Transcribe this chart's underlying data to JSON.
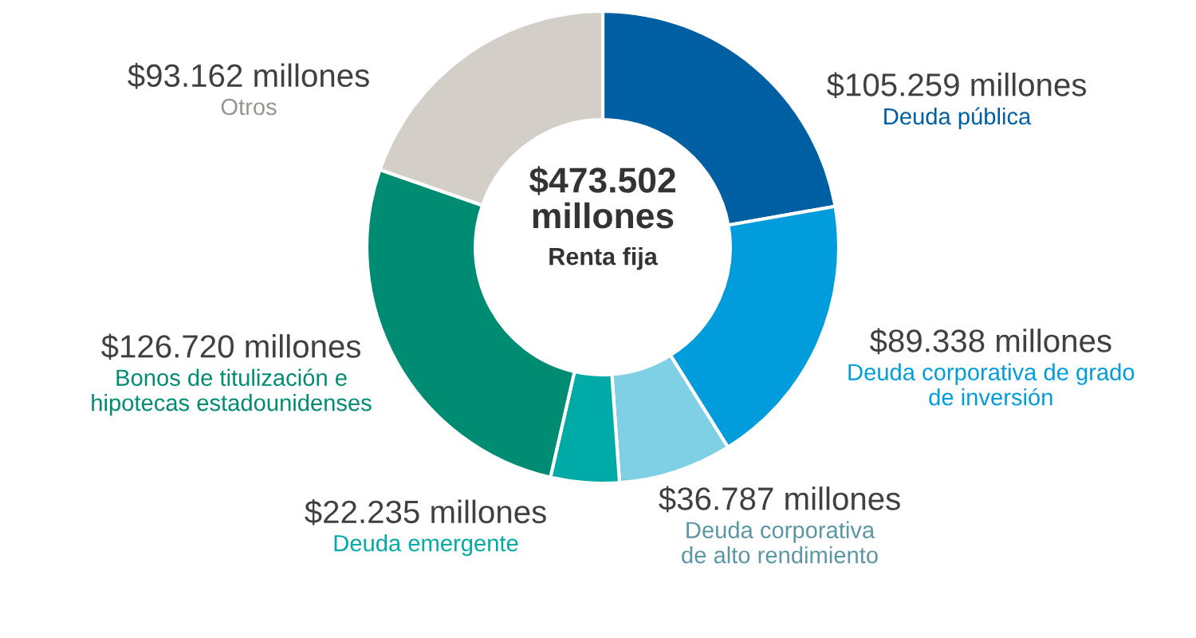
{
  "chart_data": {
    "type": "donut",
    "categories": [
      "Deuda pública",
      "Deuda corporativa de grado\nde inversión",
      "Deuda corporativa\nde alto rendimiento",
      "Deuda emergente",
      "Bonos de titulización e\nhipotecas estadounidenses",
      "Otros"
    ],
    "values": [
      105.259,
      89.338,
      36.787,
      22.235,
      126.72,
      93.162
    ],
    "value_labels": [
      "$105.259 millones",
      "$89.338 millones",
      "$36.787 millones",
      "$22.235 millones",
      "$126.720 millones",
      "$93.162 millones"
    ],
    "colors": [
      "#005ea2",
      "#009cdc",
      "#7fd0e4",
      "#00aaa6",
      "#008c72",
      "#d3cfc8"
    ],
    "annotations": [
      "$473.502\nmillones",
      "Renta fija"
    ],
    "legend": false
  }
}
